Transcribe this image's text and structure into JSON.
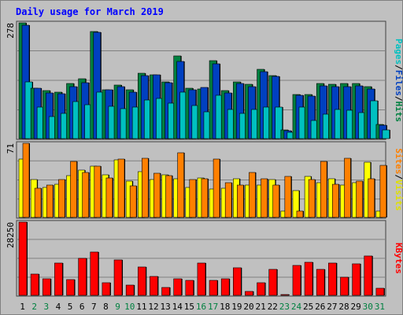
{
  "title": "Daily usage for March 2019",
  "colors": {
    "background": "#c0c0c0",
    "title": "#0000ff",
    "hits_front": "#008040",
    "hits_back": "#00c080",
    "files_front": "#0040c0",
    "files_back": "#0080ff",
    "pages_front": "#00c0c0",
    "pages_back": "#00ffff",
    "visits_front": "#ffff00",
    "visits_back": "#e0e000",
    "sites_front": "#ff8000",
    "sites_back": "#e07000",
    "kbytes_front": "#ff0000",
    "kbytes_back": "#c00000",
    "weekday_label": "#000000",
    "weekend_label": "#008040"
  },
  "legends": {
    "top": [
      {
        "text": "Pages",
        "color": "#00c0c0"
      },
      {
        "text": "/",
        "color": "#000000"
      },
      {
        "text": "Files",
        "color": "#0040c0"
      },
      {
        "text": "/",
        "color": "#000000"
      },
      {
        "text": "Hits",
        "color": "#008040"
      }
    ],
    "middle": [
      {
        "text": "Sites",
        "color": "#ff8000"
      },
      {
        "text": "/",
        "color": "#000000"
      },
      {
        "text": "Visits",
        "color": "#e0e000"
      }
    ],
    "bottom": [
      {
        "text": "KBytes",
        "color": "#ff0000"
      }
    ]
  },
  "chart_data": {
    "type": "bar",
    "title": "Daily usage for March 2019",
    "categories": [
      "1",
      "2",
      "3",
      "4",
      "5",
      "6",
      "7",
      "8",
      "9",
      "10",
      "11",
      "12",
      "13",
      "14",
      "15",
      "16",
      "17",
      "18",
      "19",
      "20",
      "21",
      "22",
      "23",
      "24",
      "25",
      "26",
      "27",
      "28",
      "29",
      "30",
      "31"
    ],
    "weekend_days": [
      "2",
      "3",
      "9",
      "10",
      "16",
      "17",
      "23",
      "24",
      "30",
      "31"
    ],
    "panels": [
      {
        "name": "hits-files-pages",
        "max_label": "278",
        "ylim": [
          0,
          278
        ],
        "series": [
          {
            "name": "Hits",
            "values": [
              278,
              121,
              116,
              112,
              133,
              144,
              258,
              118,
              128,
              117,
              157,
              153,
              137,
              198,
              121,
              120,
              188,
              115,
              137,
              130,
              166,
              152,
              20,
              106,
              106,
              133,
              131,
              133,
              133,
              125,
              34
            ]
          },
          {
            "name": "Files",
            "values": [
              272,
              121,
              110,
              107,
              124,
              134,
              255,
              118,
              124,
              111,
              151,
              153,
              135,
              186,
              118,
              122,
              180,
              110,
              133,
              124,
              160,
              149,
              19,
              104,
              103,
              127,
              125,
              125,
              126,
              120,
              32
            ]
          },
          {
            "name": "Pages",
            "values": [
              137,
              76,
              53,
              61,
              89,
              82,
              112,
              78,
              72,
              75,
              93,
              97,
              86,
              111,
              79,
              65,
              104,
              70,
              60,
              70,
              76,
              76,
              16,
              75,
              43,
              59,
              70,
              68,
              63,
              90,
              20
            ]
          }
        ]
      },
      {
        "name": "visits-sites",
        "max_label": "71",
        "ylim": [
          0,
          71
        ],
        "series": [
          {
            "name": "Visits",
            "values": [
              56,
              36,
              29,
              32,
              40,
              45,
              49,
              41,
              55,
              35,
              44,
              36,
              41,
              37,
              29,
              38,
              27,
              28,
              37,
              31,
              31,
              36,
              6,
              26,
              39,
              33,
              37,
              31,
              33,
              53,
              6
            ]
          },
          {
            "name": "Sites",
            "values": [
              71,
              28,
              31,
              36,
              54,
              43,
              49,
              38,
              56,
              30,
              57,
              42,
              40,
              62,
              36,
              37,
              56,
              33,
              31,
              43,
              37,
              31,
              39,
              6,
              36,
              54,
              32,
              57,
              35,
              37,
              50
            ]
          }
        ]
      },
      {
        "name": "kbytes",
        "max_label": "28250",
        "ylim": [
          0,
          28250
        ],
        "series": [
          {
            "name": "KBytes",
            "values": [
              28250,
              8300,
              6400,
              12600,
              6000,
              14200,
              16600,
              4900,
              13600,
              4100,
              10800,
              7400,
              3100,
              6300,
              5700,
              12400,
              5800,
              6400,
              10700,
              1400,
              4900,
              9900,
              200,
              11600,
              12700,
              10100,
              12400,
              6900,
              12300,
              15100,
              2700
            ]
          }
        ]
      }
    ]
  }
}
